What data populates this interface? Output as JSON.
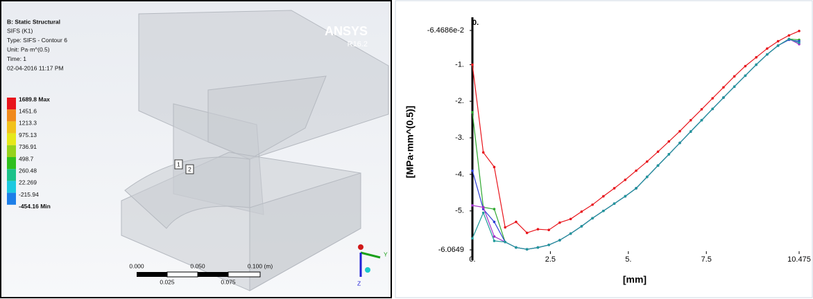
{
  "viewport": {
    "header": [
      "B: Static Structural",
      "SIFS (K1)",
      "Type: SIFS - Contour 6",
      "Unit: Pa·m^(0.5)",
      "Time: 1",
      "02-04-2016 11:17 PM"
    ],
    "logo": "ANSYS",
    "version": "R16.2",
    "legend_labels": [
      "1689.8 Max",
      "1451.6",
      "1213.3",
      "975.13",
      "736.91",
      "498.7",
      "260.48",
      "22.269",
      "-215.94",
      "-454.16 Min"
    ],
    "legend_colors": [
      "#e8141b",
      "#f08a1c",
      "#f2c21b",
      "#e6e81b",
      "#96d21c",
      "#2fc01e",
      "#1cc28a",
      "#1cc9e0",
      "#1c7ee8",
      "#1f1fd6"
    ],
    "scale_top": [
      "0.000",
      "0.050",
      "0.100 (m)"
    ],
    "scale_bottom": [
      "0.025",
      "0.075"
    ],
    "probes": [
      "1",
      "2"
    ],
    "triad": [
      "Y",
      "Z"
    ]
  },
  "chart_data": {
    "type": "line",
    "corner_label": "0.",
    "x_label": "[mm]",
    "y_label": "[MPa·mm^(0.5)]",
    "xlim": [
      0,
      10.475
    ],
    "ylim": [
      -6.0649,
      -0.064686
    ],
    "xticks": [
      {
        "value": 0,
        "label": "0."
      },
      2.5,
      {
        "value": 5,
        "label": "5."
      },
      7.5,
      10.475
    ],
    "yticks": [
      {
        "value": -0.064686,
        "label": "-6.4686e-2"
      },
      {
        "value": -1,
        "label": "-1."
      },
      {
        "value": -2,
        "label": "-2."
      },
      {
        "value": -3,
        "label": "-3."
      },
      {
        "value": -4,
        "label": "-4."
      },
      {
        "value": -5,
        "label": "-5."
      },
      -6.0649
    ],
    "x": [
      0,
      0.35,
      0.7,
      1.05,
      1.4,
      1.75,
      2.1,
      2.45,
      2.8,
      3.15,
      3.5,
      3.85,
      4.2,
      4.55,
      4.9,
      5.25,
      5.6,
      5.95,
      6.3,
      6.65,
      7.0,
      7.35,
      7.7,
      8.05,
      8.4,
      8.75,
      9.1,
      9.45,
      9.8,
      10.15,
      10.475
    ],
    "series": [
      {
        "color": "#e8141b",
        "values": [
          -1.0,
          -3.4,
          -3.8,
          -5.45,
          -5.3,
          -5.6,
          -5.5,
          -5.52,
          -5.32,
          -5.22,
          -5.02,
          -4.83,
          -4.6,
          -4.38,
          -4.15,
          -3.9,
          -3.65,
          -3.38,
          -3.1,
          -2.82,
          -2.52,
          -2.22,
          -1.92,
          -1.62,
          -1.32,
          -1.04,
          -0.8,
          -0.56,
          -0.36,
          -0.2,
          -0.08
        ]
      },
      {
        "color": "#2fa82f",
        "values": [
          -2.3,
          -4.9,
          -4.95,
          -5.85,
          -6.0,
          -6.05,
          -6.0,
          -5.93,
          -5.8,
          -5.62,
          -5.42,
          -5.2,
          -5.0,
          -4.8,
          -4.6,
          -4.38,
          -4.07,
          -3.76,
          -3.45,
          -3.14,
          -2.83,
          -2.52,
          -2.21,
          -1.9,
          -1.6,
          -1.3,
          -1.0,
          -0.72,
          -0.48,
          -0.3,
          -0.32
        ]
      },
      {
        "color": "#2f3fd6",
        "values": [
          -3.9,
          -4.95,
          -5.3,
          -5.85,
          -6.0,
          -6.05,
          -6.0,
          -5.93,
          -5.8,
          -5.62,
          -5.42,
          -5.2,
          -5.0,
          -4.8,
          -4.6,
          -4.38,
          -4.07,
          -3.76,
          -3.45,
          -3.14,
          -2.83,
          -2.52,
          -2.21,
          -1.9,
          -1.6,
          -1.3,
          -1.0,
          -0.72,
          -0.48,
          -0.32,
          -0.36
        ]
      },
      {
        "color": "#a030c8",
        "values": [
          -4.85,
          -4.9,
          -5.7,
          -5.85,
          -6.0,
          -6.05,
          -6.0,
          -5.93,
          -5.8,
          -5.62,
          -5.42,
          -5.2,
          -5.0,
          -4.8,
          -4.6,
          -4.38,
          -4.07,
          -3.76,
          -3.45,
          -3.14,
          -2.83,
          -2.52,
          -2.21,
          -1.9,
          -1.6,
          -1.3,
          -1.0,
          -0.72,
          -0.48,
          -0.3,
          -0.44
        ]
      },
      {
        "color": "#1f9a9a",
        "values": [
          -5.75,
          -5.05,
          -5.82,
          -5.85,
          -6.0,
          -6.05,
          -6.0,
          -5.93,
          -5.8,
          -5.62,
          -5.42,
          -5.2,
          -5.0,
          -4.8,
          -4.6,
          -4.38,
          -4.07,
          -3.76,
          -3.45,
          -3.14,
          -2.83,
          -2.52,
          -2.21,
          -1.9,
          -1.6,
          -1.3,
          -1.0,
          -0.72,
          -0.48,
          -0.3,
          -0.4
        ]
      }
    ]
  }
}
